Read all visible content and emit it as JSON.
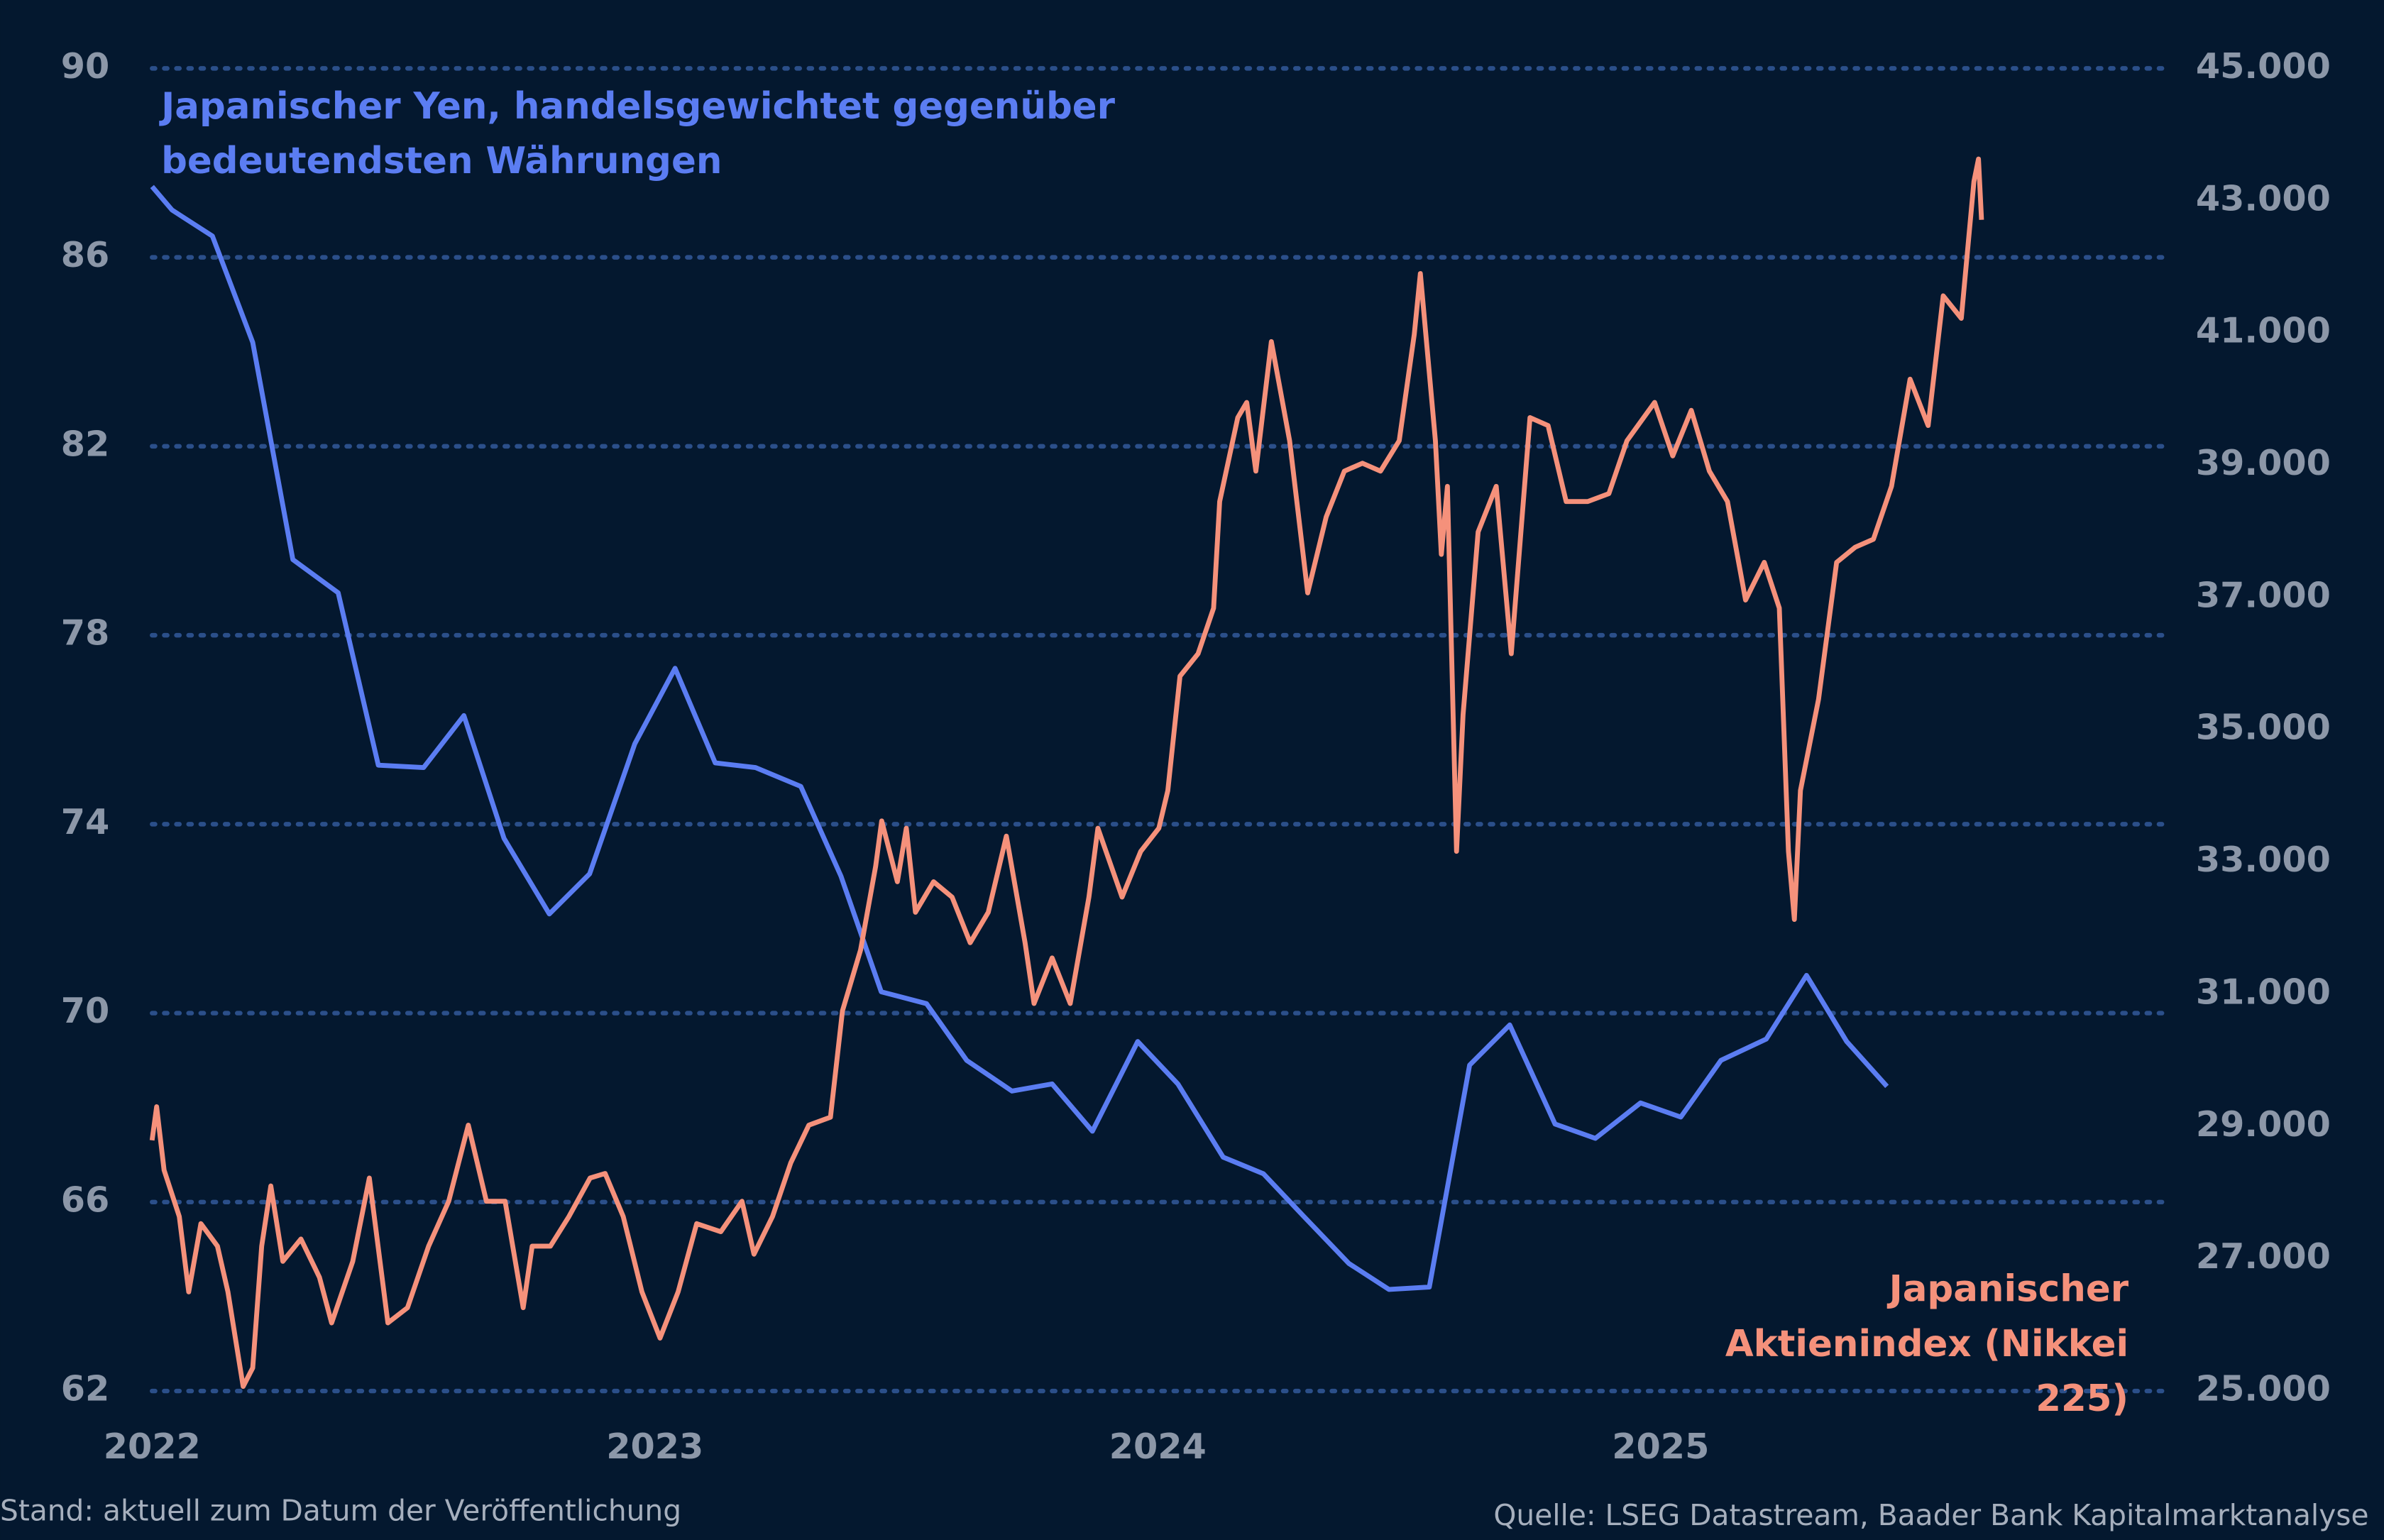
{
  "chart_data": {
    "type": "line",
    "xlim": [
      2022,
      2026
    ],
    "xticks": [
      2022,
      2023,
      2024,
      2025
    ],
    "ylim": [
      62,
      90
    ],
    "yticks": [
      62,
      66,
      70,
      74,
      78,
      82,
      86,
      90
    ],
    "y2lim": [
      25000,
      45000
    ],
    "y2ticks": [
      {
        "value": 25000,
        "label": "25.000"
      },
      {
        "value": 27000,
        "label": "27.000"
      },
      {
        "value": 29000,
        "label": "29.000"
      },
      {
        "value": 31000,
        "label": "31.000"
      },
      {
        "value": 33000,
        "label": "33.000"
      },
      {
        "value": 35000,
        "label": "35.000"
      },
      {
        "value": 37000,
        "label": "37.000"
      },
      {
        "value": 39000,
        "label": "39.000"
      },
      {
        "value": 41000,
        "label": "41.000"
      },
      {
        "value": 43000,
        "label": "43.000"
      },
      {
        "value": 45000,
        "label": "45.000"
      }
    ],
    "grid": true,
    "series": [
      {
        "name": "Japanischer Yen, handelsgewichtet gegenüber bedeutendsten Währungen",
        "color": "#5b7df2",
        "x": [
          2022.0,
          2022.04,
          2022.12,
          2022.2,
          2022.28,
          2022.37,
          2022.45,
          2022.54,
          2022.62,
          2022.7,
          2022.79,
          2022.87,
          2022.96,
          2023.04,
          2023.12,
          2023.2,
          2023.29,
          2023.37,
          2023.45,
          2023.54,
          2023.62,
          2023.71,
          2023.79,
          2023.87,
          2023.96,
          2024.04,
          2024.13,
          2024.21,
          2024.29,
          2024.38,
          2024.46,
          2024.54,
          2024.62,
          2024.7,
          2024.79,
          2024.87,
          2024.96,
          2025.04,
          2025.12,
          2025.21,
          2025.29,
          2025.37,
          2025.45
        ],
        "values": [
          87.5,
          87.0,
          86.45,
          84.2,
          79.6,
          78.9,
          75.25,
          75.2,
          76.3,
          73.7,
          72.1,
          72.95,
          75.7,
          77.3,
          75.3,
          75.2,
          74.8,
          72.9,
          70.45,
          70.2,
          69.0,
          68.35,
          68.5,
          67.5,
          69.4,
          68.5,
          66.95,
          66.6,
          65.7,
          64.7,
          64.15,
          64.2,
          68.9,
          69.75,
          67.65,
          67.35,
          68.1,
          67.8,
          69.0,
          69.45,
          70.8,
          69.4,
          68.45
        ]
      },
      {
        "name": "Japanischer Aktienindex (Nikkei 225)",
        "color": "#f5917b",
        "axis": "y2",
        "x": [
          2022.0,
          2022.009,
          2022.024,
          2022.054,
          2022.073,
          2022.097,
          2022.13,
          2022.151,
          2022.181,
          2022.2,
          2022.218,
          2022.236,
          2022.26,
          2022.296,
          2022.333,
          2022.357,
          2022.399,
          2022.432,
          2022.469,
          2022.508,
          2022.55,
          2022.59,
          2022.629,
          2022.665,
          2022.702,
          2022.738,
          2022.756,
          2022.792,
          2022.829,
          2022.871,
          2022.901,
          2022.937,
          2022.974,
          2023.01,
          2023.046,
          2023.083,
          2023.131,
          2023.173,
          2023.197,
          2023.234,
          2023.27,
          2023.306,
          2023.349,
          2023.373,
          2023.409,
          2023.439,
          2023.451,
          2023.482,
          2023.5,
          2023.518,
          2023.554,
          2023.591,
          2023.627,
          2023.663,
          2023.699,
          2023.736,
          2023.754,
          2023.79,
          2023.826,
          2023.863,
          2023.881,
          2023.929,
          2023.966,
          2024.002,
          2024.02,
          2024.044,
          2024.08,
          2024.111,
          2024.123,
          2024.159,
          2024.177,
          2024.195,
          2024.226,
          2024.262,
          2024.298,
          2024.335,
          2024.371,
          2024.407,
          2024.443,
          2024.48,
          2024.51,
          2024.522,
          2024.552,
          2024.564,
          2024.576,
          2024.594,
          2024.607,
          2024.637,
          2024.673,
          2024.703,
          2024.74,
          2024.776,
          2024.812,
          2024.855,
          2024.897,
          2024.933,
          2024.988,
          2025.024,
          2025.061,
          2025.097,
          2025.133,
          2025.169,
          2025.206,
          2025.236,
          2025.254,
          2025.266,
          2025.278,
          2025.314,
          2025.35,
          2025.387,
          2025.423,
          2025.459,
          2025.496,
          2025.532,
          2025.562,
          2025.598,
          2025.623,
          2025.632,
          2025.638
        ],
        "values": [
          28790,
          29300,
          28340,
          27640,
          26500,
          27530,
          27190,
          26500,
          25070,
          25350,
          27190,
          28100,
          26960,
          27300,
          26720,
          26030,
          26960,
          28220,
          26030,
          26260,
          27190,
          27870,
          29020,
          27870,
          27870,
          26260,
          27190,
          27190,
          27640,
          28220,
          28290,
          27640,
          26500,
          25800,
          26500,
          27530,
          27410,
          27870,
          27070,
          27640,
          28450,
          29020,
          29140,
          30750,
          31670,
          32930,
          33620,
          32700,
          33510,
          32240,
          32700,
          32470,
          31780,
          32240,
          33390,
          31780,
          30860,
          31550,
          30860,
          32470,
          33510,
          32470,
          33160,
          33510,
          34080,
          35810,
          36150,
          36840,
          38450,
          39720,
          39950,
          38910,
          40870,
          39370,
          37070,
          38220,
          38910,
          39030,
          38910,
          39370,
          40980,
          41900,
          39370,
          37650,
          38680,
          33160,
          35230,
          37990,
          38680,
          36150,
          39720,
          39600,
          38450,
          38450,
          38570,
          39370,
          39950,
          39140,
          39830,
          38910,
          38450,
          36960,
          37530,
          36840,
          33160,
          32130,
          34080,
          35460,
          37530,
          37760,
          37880,
          38680,
          40300,
          39600,
          41560,
          41220,
          43290,
          43630,
          42710
        ]
      }
    ],
    "footnote": "Stand: aktuell zum Datum der Veröffentlichung",
    "source": "Quelle: LSEG Datastream, Baader Bank Kapitalmarktanalyse"
  }
}
